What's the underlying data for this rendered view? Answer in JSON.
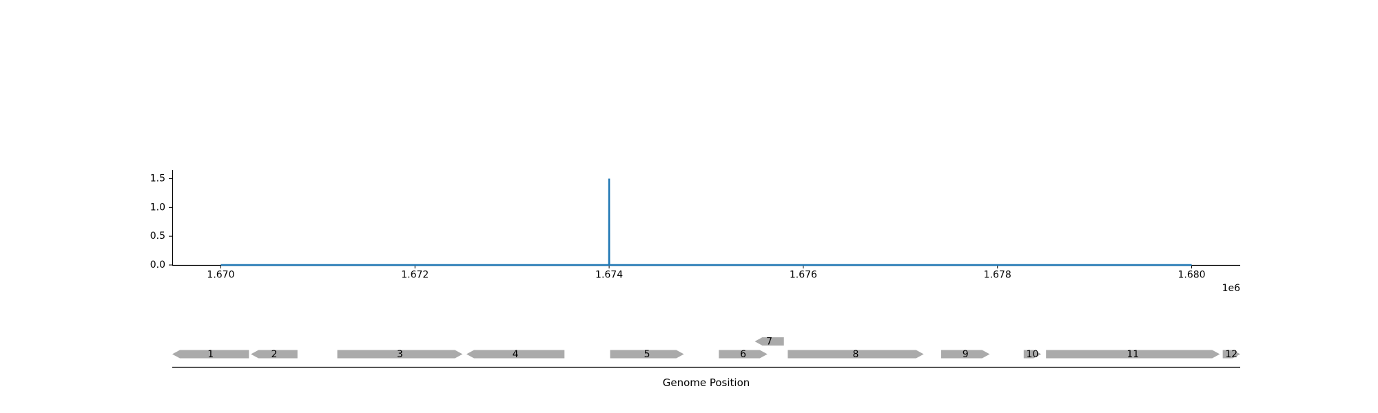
{
  "chart_data": [
    {
      "type": "line",
      "x": [
        1670000,
        1673999,
        1674000,
        1674001,
        1680000
      ],
      "series": [
        {
          "values": [
            0.0,
            0.0,
            1.5,
            0.0,
            0.0
          ]
        }
      ],
      "xlim": [
        1669500,
        1680500
      ],
      "ylim": [
        0.0,
        1.65
      ],
      "xticks": [
        1670000,
        1672000,
        1674000,
        1676000,
        1678000,
        1680000
      ],
      "xtick_labels": [
        "1.670",
        "1.672",
        "1.674",
        "1.676",
        "1.678",
        "1.680"
      ],
      "yticks": [
        0.0,
        0.5,
        1.0,
        1.5
      ],
      "ytick_labels": [
        "0.0",
        "0.5",
        "1.0",
        "1.5"
      ],
      "x_offset_label": "1e6",
      "grid": false,
      "colors": {
        "line": "#1f77b4"
      }
    },
    {
      "type": "gene_map",
      "xlabel": "Genome Position",
      "xlim": [
        1669500,
        1680500
      ],
      "genes": [
        {
          "label": "1",
          "start": 1669500,
          "end": 1670290,
          "strand": "-",
          "row": 0
        },
        {
          "label": "2",
          "start": 1670310,
          "end": 1670790,
          "strand": "-",
          "row": 0
        },
        {
          "label": "3",
          "start": 1671200,
          "end": 1672490,
          "strand": "+",
          "row": 0
        },
        {
          "label": "4",
          "start": 1672530,
          "end": 1673540,
          "strand": "-",
          "row": 0
        },
        {
          "label": "5",
          "start": 1674010,
          "end": 1674770,
          "strand": "+",
          "row": 0
        },
        {
          "label": "6",
          "start": 1675130,
          "end": 1675630,
          "strand": "+",
          "row": 0
        },
        {
          "label": "7",
          "start": 1675500,
          "end": 1675800,
          "strand": "-",
          "row": 1
        },
        {
          "label": "8",
          "start": 1675840,
          "end": 1677240,
          "strand": "+",
          "row": 0
        },
        {
          "label": "9",
          "start": 1677420,
          "end": 1677920,
          "strand": "+",
          "row": 0
        },
        {
          "label": "10",
          "start": 1678270,
          "end": 1678450,
          "strand": "+",
          "row": 0
        },
        {
          "label": "11",
          "start": 1678500,
          "end": 1680290,
          "strand": "+",
          "row": 0
        },
        {
          "label": "12",
          "start": 1680320,
          "end": 1680500,
          "strand": "+",
          "row": 0
        }
      ],
      "colors": {
        "gene": "#aaaaaa"
      }
    }
  ]
}
